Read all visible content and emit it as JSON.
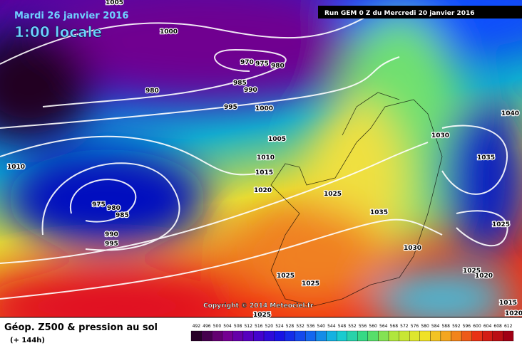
{
  "header": {
    "date": "Mardi 26 janvier 2016",
    "time": "1:00 locale",
    "run": "Run GEM 0 Z du Mercredi 20 janvier 2016"
  },
  "copyright": "Copyright © 2014 Meteociel.fr",
  "footer": {
    "title": "Géop. Z500 & pression au sol",
    "lead": "(+ 144h)"
  },
  "scale": [
    "492",
    "496",
    "500",
    "504",
    "508",
    "512",
    "516",
    "520",
    "524",
    "528",
    "532",
    "536",
    "540",
    "544",
    "548",
    "552",
    "556",
    "560",
    "564",
    "568",
    "572",
    "576",
    "580",
    "584",
    "588",
    "592",
    "596",
    "600",
    "604",
    "608",
    "612"
  ],
  "isobar_labels": [
    "1005",
    "1000",
    "970",
    "975",
    "980",
    "980",
    "985",
    "990",
    "995",
    "1000",
    "1005",
    "1010",
    "1015",
    "1020",
    "1010",
    "975",
    "980",
    "985",
    "990",
    "995",
    "1025",
    "1035",
    "1030",
    "1030",
    "1035",
    "1040",
    "1025",
    "1025",
    "1020",
    "1025",
    "1025",
    "1025",
    "1015",
    "1020"
  ]
}
